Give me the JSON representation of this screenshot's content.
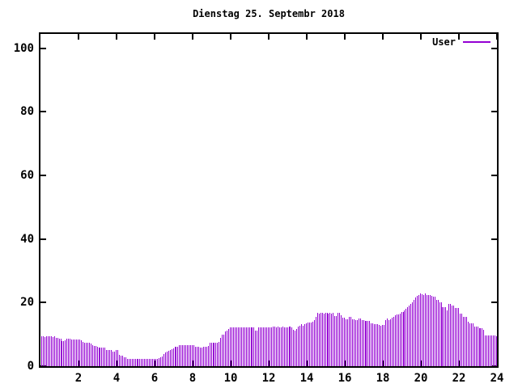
{
  "colors": {
    "background": "#ffffff",
    "border": "#000000",
    "text": "#000000",
    "bar": "#9400d3"
  },
  "chart_data": {
    "type": "bar",
    "title": "Dienstag 25. Septembr 2018",
    "xlabel": "",
    "ylabel": "",
    "grid": false,
    "legend_position": "top-right",
    "x_axis": {
      "unit": "hour",
      "range": [
        0,
        24
      ],
      "ticks": [
        2,
        4,
        6,
        8,
        10,
        12,
        14,
        16,
        18,
        20,
        22,
        24
      ]
    },
    "y_axis": {
      "range": [
        0,
        104.5
      ],
      "ticks": [
        0,
        20,
        40,
        60,
        80,
        100
      ]
    },
    "sample_interval_minutes": 5,
    "series": [
      {
        "name": "User",
        "color": "#9400d3",
        "values": [
          9.3,
          9.3,
          9.1,
          9.3,
          9.5,
          9.5,
          9.3,
          9.1,
          9.3,
          8.8,
          8.8,
          8.6,
          8.6,
          8.0,
          8.0,
          8.2,
          8.6,
          8.6,
          8.6,
          8.5,
          8.5,
          8.3,
          8.3,
          8.3,
          8.3,
          8.1,
          7.7,
          7.5,
          7.5,
          7.5,
          7.5,
          7.2,
          6.7,
          6.3,
          6.3,
          6.0,
          5.9,
          5.9,
          5.9,
          5.9,
          5.9,
          5.1,
          5.1,
          5.1,
          5.1,
          4.7,
          4.7,
          5.1,
          5.1,
          3.6,
          3.4,
          3.4,
          2.8,
          2.8,
          2.3,
          2.3,
          2.3,
          2.2,
          2.2,
          2.2,
          2.2,
          2.2,
          2.2,
          2.2,
          2.2,
          2.2,
          2.2,
          2.2,
          2.2,
          2.2,
          2.2,
          2.3,
          2.3,
          2.4,
          2.6,
          2.8,
          3.1,
          3.8,
          4.3,
          4.6,
          4.9,
          5.1,
          5.3,
          5.7,
          6.0,
          6.2,
          6.2,
          6.5,
          6.5,
          6.5,
          6.7,
          6.5,
          6.5,
          6.5,
          6.5,
          6.5,
          6.5,
          6.2,
          6.2,
          6.0,
          5.8,
          5.8,
          6.0,
          6.2,
          6.2,
          6.3,
          7.4,
          7.5,
          7.5,
          7.5,
          7.5,
          7.5,
          7.6,
          8.8,
          9.9,
          9.9,
          10.9,
          11.3,
          11.7,
          12.1,
          12.3,
          12.3,
          12.1,
          12.3,
          12.3,
          12.3,
          12.3,
          12.1,
          12.3,
          12.3,
          12.3,
          12.1,
          12.3,
          12.1,
          12.1,
          11.3,
          11.3,
          12.1,
          12.1,
          12.1,
          12.1,
          12.3,
          12.1,
          12.1,
          12.1,
          12.3,
          12.5,
          12.5,
          12.3,
          12.5,
          12.3,
          12.3,
          12.5,
          12.3,
          12.3,
          12.3,
          12.5,
          12.5,
          12.3,
          11.5,
          11.3,
          11.8,
          12.5,
          12.8,
          13.1,
          12.8,
          13.1,
          13.4,
          13.8,
          13.8,
          13.8,
          14.0,
          14.4,
          15.5,
          16.7,
          16.5,
          16.7,
          16.7,
          16.5,
          16.7,
          16.7,
          16.5,
          16.7,
          16.5,
          16.7,
          15.7,
          15.7,
          16.7,
          16.7,
          16.1,
          15.3,
          15.3,
          14.8,
          14.8,
          15.5,
          15.5,
          14.8,
          14.8,
          14.4,
          14.4,
          15.0,
          15.0,
          14.4,
          14.4,
          14.2,
          14.2,
          14.2,
          14.2,
          13.6,
          13.6,
          13.1,
          13.1,
          13.3,
          13.0,
          12.7,
          13.0,
          13.0,
          14.6,
          15.0,
          14.4,
          14.8,
          15.2,
          15.6,
          16.0,
          16.3,
          16.3,
          16.5,
          17.0,
          17.0,
          17.5,
          18.0,
          18.6,
          19.0,
          19.7,
          20.2,
          20.8,
          21.5,
          22.2,
          22.5,
          22.9,
          22.7,
          22.5,
          22.9,
          22.5,
          22.3,
          22.5,
          22.2,
          21.9,
          21.9,
          20.8,
          20.8,
          20.2,
          20.2,
          18.6,
          18.6,
          18.6,
          17.6,
          19.7,
          19.7,
          19.1,
          19.1,
          18.2,
          18.2,
          18.2,
          16.5,
          16.5,
          15.4,
          15.4,
          15.4,
          14.0,
          13.4,
          13.4,
          13.4,
          12.5,
          12.5,
          12.5,
          12.0,
          12.0,
          12.0,
          11.5,
          9.7,
          9.7,
          9.7,
          9.7,
          9.7,
          9.7,
          9.7,
          9.3
        ]
      }
    ]
  }
}
